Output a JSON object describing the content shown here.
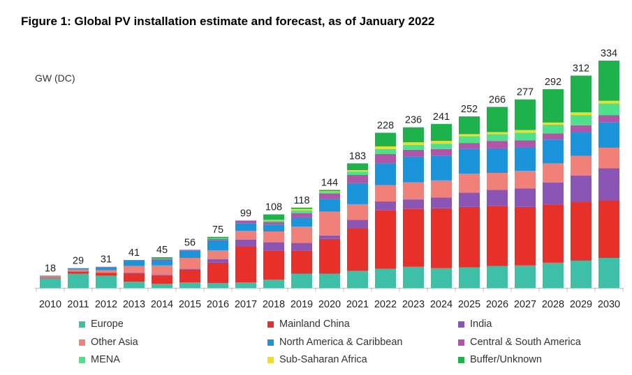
{
  "chart_data": {
    "type": "bar",
    "stacked": true,
    "title": "Figure 1:  Global PV installation estimate and forecast, as of January 2022",
    "ylabel": "GW (DC)",
    "xlabel": "",
    "ylim": [
      0,
      340
    ],
    "grid": false,
    "legend_position": "bottom",
    "categories": [
      "2010",
      "2011",
      "2012",
      "2013",
      "2014",
      "2015",
      "2016",
      "2017",
      "2018",
      "2019",
      "2020",
      "2021",
      "2022",
      "2023",
      "2024",
      "2025",
      "2026",
      "2027",
      "2028",
      "2029",
      "2030"
    ],
    "totals": [
      18,
      29,
      31,
      41,
      45,
      56,
      75,
      99,
      108,
      118,
      144,
      183,
      228,
      236,
      241,
      252,
      266,
      277,
      292,
      312,
      334
    ],
    "series": [
      {
        "name": "Europe",
        "color": "#3dbfa8",
        "values": [
          14,
          21,
          18,
          9,
          6,
          8,
          7,
          8,
          12,
          21,
          21,
          25,
          28,
          31,
          29,
          30,
          32,
          33,
          37,
          40,
          44
        ]
      },
      {
        "name": "Mainland China",
        "color": "#e8302a",
        "values": [
          1,
          3,
          4,
          12,
          12,
          19,
          30,
          53,
          43,
          34,
          51,
          63,
          86,
          85,
          88,
          89,
          88,
          86,
          85,
          86,
          85
        ]
      },
      {
        "name": "India",
        "color": "#8a55b5",
        "values": [
          0,
          0,
          0,
          1,
          1,
          1,
          5,
          10,
          12,
          11,
          5,
          12,
          13,
          14,
          16,
          21,
          24,
          27,
          33,
          39,
          47
        ]
      },
      {
        "name": "Other Asia",
        "color": "#f08078",
        "values": [
          2,
          3,
          4,
          10,
          14,
          16,
          13,
          13,
          16,
          24,
          35,
          23,
          24,
          25,
          25,
          28,
          25,
          26,
          28,
          29,
          30
        ]
      },
      {
        "name": "North America & Caribbean",
        "color": "#1a95dc",
        "values": [
          1,
          2,
          4,
          8,
          8,
          11,
          15,
          11,
          10,
          13,
          19,
          31,
          32,
          38,
          36,
          36,
          36,
          35,
          35,
          35,
          37
        ]
      },
      {
        "name": "Central & South America",
        "color": "#b155a8",
        "values": [
          0,
          0,
          1,
          1,
          1,
          1,
          2,
          4,
          4,
          7,
          8,
          12,
          14,
          10,
          10,
          9,
          11,
          10,
          9,
          10,
          11
        ]
      },
      {
        "name": "MENA",
        "color": "#4ee08a",
        "values": [
          0,
          0,
          0,
          0,
          1,
          0,
          1,
          0,
          2,
          4,
          2,
          5,
          7,
          7,
          8,
          10,
          10,
          11,
          13,
          15,
          17
        ]
      },
      {
        "name": "Sub-Saharan Africa",
        "color": "#f0dc2a",
        "values": [
          0,
          0,
          0,
          0,
          0,
          0,
          0,
          0,
          1,
          2,
          1,
          2,
          4,
          4,
          4,
          3,
          3,
          4,
          3,
          4,
          4
        ]
      },
      {
        "name": "Buffer/Unknown",
        "color": "#1db24c",
        "values": [
          0,
          0,
          0,
          0,
          2,
          0,
          2,
          0,
          8,
          2,
          2,
          10,
          20,
          22,
          25,
          26,
          37,
          45,
          49,
          54,
          59
        ]
      }
    ]
  }
}
